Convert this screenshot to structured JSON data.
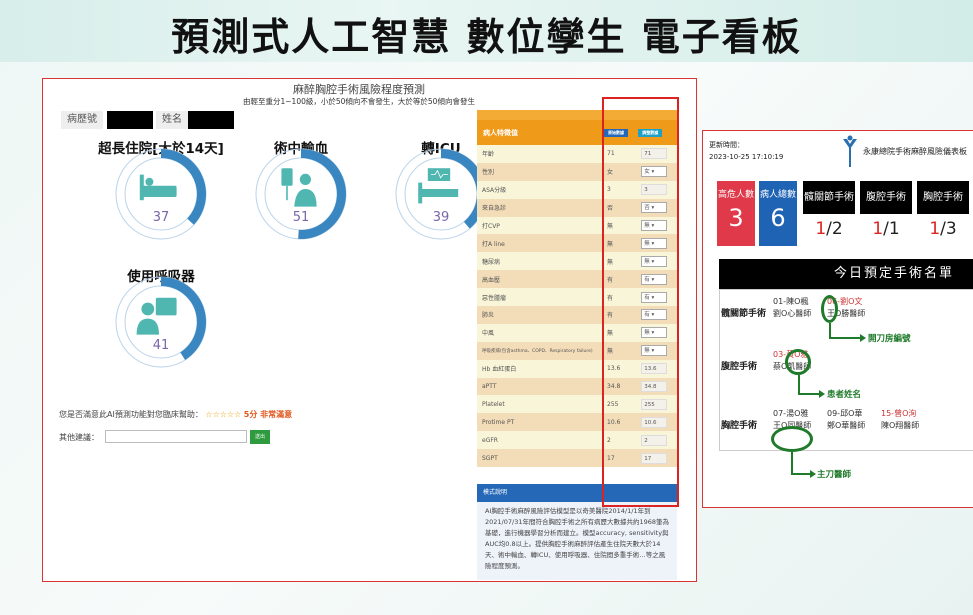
{
  "slide_title": "預測式人工智慧 數位孿生 電子看板",
  "left_panel": {
    "title": "麻醉胸腔手術風險程度預測",
    "subtitle": "由輕至重分1~100級，小於50傾向不會發生，大於等於50傾向會發生",
    "record_label": "病歷號",
    "name_label": "姓名",
    "risks": [
      {
        "label": "超長住院[大於14天]",
        "value": 37,
        "icon": "bed-icon"
      },
      {
        "label": "術中輸血",
        "value": 51,
        "icon": "blood-transfusion-icon"
      },
      {
        "label": "轉ICU",
        "value": 39,
        "icon": "icu-bed-icon"
      },
      {
        "label": "使用呼吸器",
        "value": 41,
        "icon": "ventilator-icon"
      }
    ],
    "accent_color": "#3a86c0",
    "rating_question": "您是否滿意此AI預測功能對您臨床幫助：",
    "rating_stars": "☆☆☆☆☆",
    "rating_score": "5分 非常滿意",
    "suggestion_label": "其他建議：",
    "submit_label": "送出",
    "table": {
      "header": "病人特徵值",
      "btn_original": "原始數據",
      "btn_adjust": "調整數據",
      "rows": [
        {
          "name": "年齡",
          "value": "71",
          "input": "71",
          "type": "input"
        },
        {
          "name": "性別",
          "value": "女",
          "input": "女",
          "type": "select"
        },
        {
          "name": "ASA分級",
          "value": "3",
          "input": "3",
          "type": "input"
        },
        {
          "name": "來自急診",
          "value": "否",
          "input": "否",
          "type": "select"
        },
        {
          "name": "打CVP",
          "value": "無",
          "input": "無",
          "type": "select"
        },
        {
          "name": "打A line",
          "value": "無",
          "input": "無",
          "type": "select"
        },
        {
          "name": "糖尿病",
          "value": "無",
          "input": "無",
          "type": "select"
        },
        {
          "name": "高血壓",
          "value": "有",
          "input": "有",
          "type": "select"
        },
        {
          "name": "惡性腫瘤",
          "value": "有",
          "input": "有",
          "type": "select"
        },
        {
          "name": "肺炎",
          "value": "有",
          "input": "有",
          "type": "select"
        },
        {
          "name": "中風",
          "value": "無",
          "input": "無",
          "type": "select"
        },
        {
          "name": "呼吸疾病(包含asthma、COPD、Respiratory failure)",
          "value": "無",
          "input": "無",
          "type": "select"
        },
        {
          "name": "Hb 血紅蛋白",
          "value": "13.6",
          "input": "13.6",
          "type": "input"
        },
        {
          "name": "aPTT",
          "value": "34.8",
          "input": "34.8",
          "type": "input"
        },
        {
          "name": "Platelet",
          "value": "255",
          "input": "255",
          "type": "input"
        },
        {
          "name": "Protime PT",
          "value": "10.6",
          "input": "10.6",
          "type": "input"
        },
        {
          "name": "eGFR",
          "value": "2",
          "input": "2",
          "type": "input"
        },
        {
          "name": "SGPT",
          "value": "17",
          "input": "17",
          "type": "input"
        }
      ]
    },
    "model_title": "模式說明",
    "model_text": "AI胸腔手術麻醉風險評估模型是以奇美醫院2014/1/1年到2021/07/31年間符合胸腔手術之所有病歷大數據共約1968筆為基礎，進行機器學習分析而建立。模型accuracy, sensitivity與AUC均0.8以上。提供胸腔手術麻醉評估產生住院天數大於14天、術中輸血、轉ICU、使用呼吸器、住院間多重手術…等之風險程度預測。"
  },
  "right_panel": {
    "update_label": "更新時間：",
    "update_time": "2023-10-25 17:10:19",
    "title": "永康總院手術麻醉風險儀表板",
    "high_risk_label": "高危人數",
    "high_risk_count": "3",
    "total_label": "病人總數",
    "total_count": "6",
    "high_risk_color": "#e0394a",
    "total_color": "#1f63b5",
    "categories": [
      {
        "name": "髖關節手術",
        "high": "1",
        "total": "/2"
      },
      {
        "name": "腹腔手術",
        "high": "1",
        "total": "/1"
      },
      {
        "name": "胸腔手術",
        "high": "1",
        "total": "/3"
      }
    ],
    "schedule_title": "今日預定手術名單",
    "schedule": [
      {
        "name": "髖關節手術",
        "items": [
          {
            "patient": "01-陳O楓",
            "doctor": "劉O心醫師",
            "risk": false
          },
          {
            "patient": "06-劉O文",
            "doctor": "王O勝醫師",
            "risk": true
          }
        ]
      },
      {
        "name": "腹腔手術",
        "items": [
          {
            "patient": "03-黃O雅",
            "doctor": "蔡O凱醫師",
            "risk": true
          }
        ]
      },
      {
        "name": "胸腔手術",
        "items": [
          {
            "patient": "07-湯O雅",
            "doctor": "王O同醫師",
            "risk": false
          },
          {
            "patient": "09-邱O華",
            "doctor": "鄭O華醫師",
            "risk": false
          },
          {
            "patient": "15-曾O洵",
            "doctor": "陳O翔醫師",
            "risk": true
          }
        ]
      }
    ],
    "annotations": {
      "room": "開刀房編號",
      "patient": "患者姓名",
      "surgeon": "主刀醫師"
    }
  }
}
